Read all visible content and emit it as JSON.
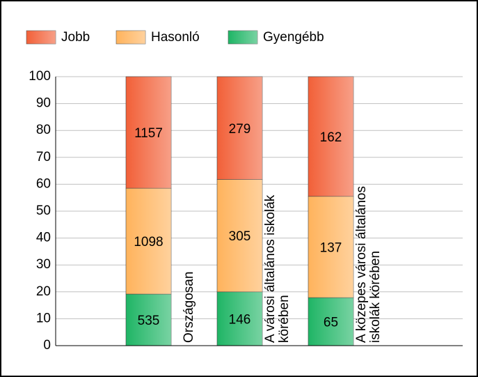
{
  "chart_data": {
    "type": "bar",
    "stacking": "percent",
    "categories": [
      "Országosan",
      "A városi általános iskolák körében",
      "A közepes városi általános iskolák körében"
    ],
    "series": [
      {
        "name": "Jobb",
        "color": "#f26038",
        "values": [
          1157,
          279,
          162
        ]
      },
      {
        "name": "Hasonló",
        "color": "#ffb35c",
        "values": [
          1098,
          305,
          137
        ]
      },
      {
        "name": "Gyengébb",
        "color": "#1fb565",
        "values": [
          535,
          146,
          65
        ]
      }
    ],
    "ylim": [
      0,
      100
    ],
    "yticks": [
      0,
      10,
      20,
      30,
      40,
      50,
      60,
      70,
      80,
      90,
      100
    ],
    "grid": true,
    "legend": "top-left"
  }
}
